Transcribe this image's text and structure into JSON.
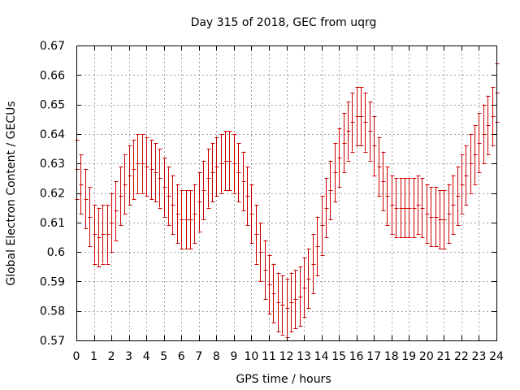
{
  "chart_data": {
    "type": "line",
    "title": "Day 315 of 2018, GEC from uqrg",
    "xlabel": "GPS time / hours",
    "ylabel": "Global Electron Content / GECUs",
    "xlim": [
      0,
      24
    ],
    "ylim": [
      0.57,
      0.67
    ],
    "xticks": [
      0,
      1,
      2,
      3,
      4,
      5,
      6,
      7,
      8,
      9,
      10,
      11,
      12,
      13,
      14,
      15,
      16,
      17,
      18,
      19,
      20,
      21,
      22,
      23,
      24
    ],
    "xtick_labels": [
      "0",
      "1",
      "2",
      "3",
      "4",
      "5",
      "6",
      "7",
      "8",
      "9",
      "10",
      "11",
      "12",
      "13",
      "14",
      "15",
      "16",
      "17",
      "18",
      "19",
      "20",
      "21",
      "22",
      "23",
      "24"
    ],
    "yticks": [
      0.57,
      0.58,
      0.59,
      0.6,
      0.61,
      0.62,
      0.63,
      0.64,
      0.65,
      0.66,
      0.67
    ],
    "ytick_labels": [
      "0.57",
      "0.58",
      "0.59",
      "0.6",
      "0.61",
      "0.62",
      "0.63",
      "0.64",
      "0.65",
      "0.66",
      "0.67"
    ],
    "grid": true,
    "series_style": "error bars",
    "series_color": "#cc0000",
    "series": [
      {
        "x": [
          0,
          0.25,
          0.5,
          0.75,
          1,
          1.25,
          1.5,
          1.75,
          2,
          2.25,
          2.5,
          2.75,
          3,
          3.25,
          3.5,
          3.75,
          4,
          4.25,
          4.5,
          4.75,
          5,
          5.25,
          5.5,
          5.75,
          6,
          6.25,
          6.5,
          6.75,
          7,
          7.25,
          7.5,
          7.75,
          8,
          8.25,
          8.5,
          8.75,
          9,
          9.25,
          9.5,
          9.75,
          10,
          10.25,
          10.5,
          10.75,
          11,
          11.25,
          11.5,
          11.75,
          12,
          12.25,
          12.5,
          12.75,
          13,
          13.25,
          13.5,
          13.75,
          14,
          14.25,
          14.5,
          14.75,
          15,
          15.25,
          15.5,
          15.75,
          16,
          16.25,
          16.5,
          16.75,
          17,
          17.25,
          17.5,
          17.75,
          18,
          18.25,
          18.5,
          18.75,
          19,
          19.25,
          19.5,
          19.75,
          20,
          20.25,
          20.5,
          20.75,
          21,
          21.25,
          21.5,
          21.75,
          22,
          22.25,
          22.5,
          22.75,
          23,
          23.25,
          23.5,
          23.75,
          24
        ],
        "y": [
          0.628,
          0.623,
          0.618,
          0.612,
          0.606,
          0.605,
          0.606,
          0.606,
          0.61,
          0.614,
          0.619,
          0.623,
          0.626,
          0.628,
          0.63,
          0.63,
          0.629,
          0.628,
          0.627,
          0.625,
          0.622,
          0.619,
          0.616,
          0.613,
          0.611,
          0.611,
          0.611,
          0.613,
          0.617,
          0.621,
          0.625,
          0.627,
          0.629,
          0.63,
          0.631,
          0.631,
          0.63,
          0.627,
          0.624,
          0.619,
          0.613,
          0.606,
          0.6,
          0.594,
          0.589,
          0.586,
          0.583,
          0.582,
          0.581,
          0.583,
          0.584,
          0.585,
          0.588,
          0.591,
          0.596,
          0.602,
          0.609,
          0.615,
          0.621,
          0.627,
          0.632,
          0.637,
          0.641,
          0.644,
          0.646,
          0.646,
          0.644,
          0.641,
          0.636,
          0.629,
          0.624,
          0.619,
          0.616,
          0.615,
          0.615,
          0.615,
          0.615,
          0.615,
          0.616,
          0.615,
          0.613,
          0.612,
          0.612,
          0.611,
          0.611,
          0.613,
          0.616,
          0.619,
          0.623,
          0.626,
          0.63,
          0.633,
          0.637,
          0.64,
          0.643,
          0.646,
          0.654
        ],
        "error": [
          0.01,
          0.01,
          0.01,
          0.01,
          0.01,
          0.01,
          0.01,
          0.01,
          0.01,
          0.01,
          0.01,
          0.01,
          0.01,
          0.01,
          0.01,
          0.01,
          0.01,
          0.01,
          0.01,
          0.01,
          0.01,
          0.01,
          0.01,
          0.01,
          0.01,
          0.01,
          0.01,
          0.01,
          0.01,
          0.01,
          0.01,
          0.01,
          0.01,
          0.01,
          0.01,
          0.01,
          0.01,
          0.01,
          0.01,
          0.01,
          0.01,
          0.01,
          0.01,
          0.01,
          0.01,
          0.01,
          0.01,
          0.01,
          0.01,
          0.01,
          0.01,
          0.01,
          0.01,
          0.01,
          0.01,
          0.01,
          0.01,
          0.01,
          0.01,
          0.01,
          0.01,
          0.01,
          0.01,
          0.01,
          0.01,
          0.01,
          0.01,
          0.01,
          0.01,
          0.01,
          0.01,
          0.01,
          0.01,
          0.01,
          0.01,
          0.01,
          0.01,
          0.01,
          0.01,
          0.01,
          0.01,
          0.01,
          0.01,
          0.01,
          0.01,
          0.01,
          0.01,
          0.01,
          0.01,
          0.01,
          0.01,
          0.01,
          0.01,
          0.01,
          0.01,
          0.01,
          0.01
        ]
      }
    ]
  }
}
